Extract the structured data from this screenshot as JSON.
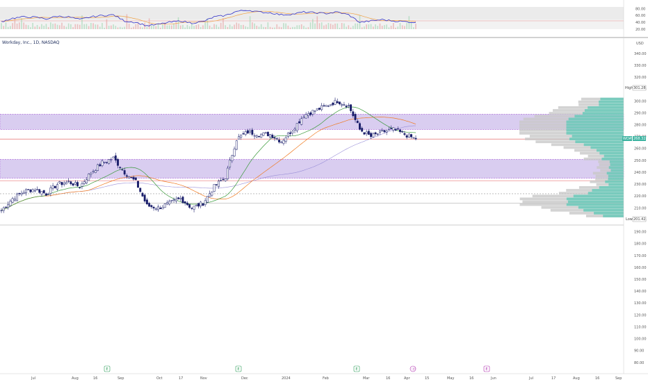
{
  "header": {
    "title": "Workday, Inc., 1D, NASDAQ",
    "currency": "USD"
  },
  "colors": {
    "candle": "#1b1f6b",
    "zone": "#d9cdf0",
    "zone_border": "#b06ad9",
    "support_line": "#e05050",
    "ma_fast": "#3a9a3a",
    "ma_mid": "#f07a20",
    "ma_slow": "#9a8fd8",
    "rsi_line": "#3030c8",
    "rsi_ma": "#f0a040",
    "profile": "#63c9b8",
    "profile_gray": "#c8c8c8",
    "price_label": "#3bb3a0",
    "earnings": "#2e9e5a",
    "dividend": "#b030b0"
  },
  "price_axis": {
    "ticks": [
      "340.00",
      "330.00",
      "320.00",
      "310.00",
      "300.00",
      "290.00",
      "280.00",
      "270.00",
      "260.00",
      "250.00",
      "240.00",
      "230.00",
      "220.00",
      "210.00",
      "200.00",
      "190.00",
      "180.00",
      "170.00",
      "160.00",
      "150.00",
      "140.00",
      "130.00",
      "120.00",
      "110.00",
      "100.00",
      "90.00",
      "80.00"
    ],
    "high_label": "High",
    "high_value": "301.28",
    "current_symbol": "WDAY",
    "current_value": "268.32",
    "low_label": "Low",
    "low_value": "201.42"
  },
  "rsi_axis": {
    "ticks": [
      "80.00",
      "60.00",
      "40.00",
      "20.00"
    ]
  },
  "time_axis": {
    "labels": [
      "Jul",
      "Aug",
      "16",
      "Sep",
      "Oct",
      "17",
      "Nov",
      "Dec",
      "2024",
      "Feb",
      "Mar",
      "16",
      "Apr",
      "15",
      "May",
      "16",
      "Jun",
      "Jul",
      "17",
      "Aug",
      "16",
      "Sep"
    ]
  },
  "events": [
    {
      "type": "earnings",
      "label": "E"
    },
    {
      "type": "earnings",
      "label": "E"
    },
    {
      "type": "earnings",
      "label": "E"
    },
    {
      "type": "dividend",
      "label": "ⓓ"
    },
    {
      "type": "earnings",
      "label": "E"
    }
  ],
  "chart_data": {
    "type": "candlestick",
    "title": "Workday, Inc., 1D, NASDAQ",
    "currency": "USD",
    "ylim": [
      75,
      345
    ],
    "high": 301.28,
    "low": 201.42,
    "last": 268.32,
    "zones": [
      [
        276,
        289
      ],
      [
        235,
        251
      ]
    ],
    "support_levels": [
      268,
      233
    ],
    "dashed_levels": [
      222
    ],
    "gray_levels": [
      214
    ],
    "close_series": [
      {
        "date": "Jul",
        "close": 208
      },
      {
        "date": "",
        "close": 218
      },
      {
        "date": "",
        "close": 224
      },
      {
        "date": "",
        "close": 226
      },
      {
        "date": "Aug",
        "close": 222
      },
      {
        "date": "",
        "close": 230
      },
      {
        "date": "16",
        "close": 232
      },
      {
        "date": "",
        "close": 228
      },
      {
        "date": "",
        "close": 240
      },
      {
        "date": "Sep",
        "close": 248
      },
      {
        "date": "",
        "close": 252
      },
      {
        "date": "",
        "close": 240
      },
      {
        "date": "",
        "close": 232
      },
      {
        "date": "",
        "close": 212
      },
      {
        "date": "Oct",
        "close": 210
      },
      {
        "date": "",
        "close": 214
      },
      {
        "date": "17",
        "close": 218
      },
      {
        "date": "",
        "close": 210
      },
      {
        "date": "Nov",
        "close": 214
      },
      {
        "date": "",
        "close": 228
      },
      {
        "date": "",
        "close": 236
      },
      {
        "date": "Dec",
        "close": 268
      },
      {
        "date": "",
        "close": 274
      },
      {
        "date": "",
        "close": 272
      },
      {
        "date": "",
        "close": 272
      },
      {
        "date": "2024",
        "close": 266
      },
      {
        "date": "",
        "close": 276
      },
      {
        "date": "",
        "close": 288
      },
      {
        "date": "",
        "close": 292
      },
      {
        "date": "Feb",
        "close": 296
      },
      {
        "date": "",
        "close": 300
      },
      {
        "date": "",
        "close": 296
      },
      {
        "date": "Mar",
        "close": 276
      },
      {
        "date": "",
        "close": 270
      },
      {
        "date": "",
        "close": 274
      },
      {
        "date": "16",
        "close": 276
      },
      {
        "date": "",
        "close": 272
      },
      {
        "date": "Apr",
        "close": 268
      }
    ],
    "rsi": {
      "ticks": [
        80,
        60,
        40,
        20
      ],
      "bands": [
        70,
        30
      ],
      "values": [
        42,
        52,
        56,
        55,
        50,
        58,
        56,
        48,
        56,
        60,
        62,
        44,
        40,
        30,
        34,
        40,
        44,
        38,
        42,
        56,
        60,
        72,
        76,
        70,
        68,
        62,
        64,
        70,
        68,
        66,
        70,
        62,
        40,
        44,
        48,
        44,
        42,
        40
      ]
    },
    "volume_profile": "shown",
    "ma_lines": [
      "fast",
      "mid",
      "slow"
    ]
  }
}
